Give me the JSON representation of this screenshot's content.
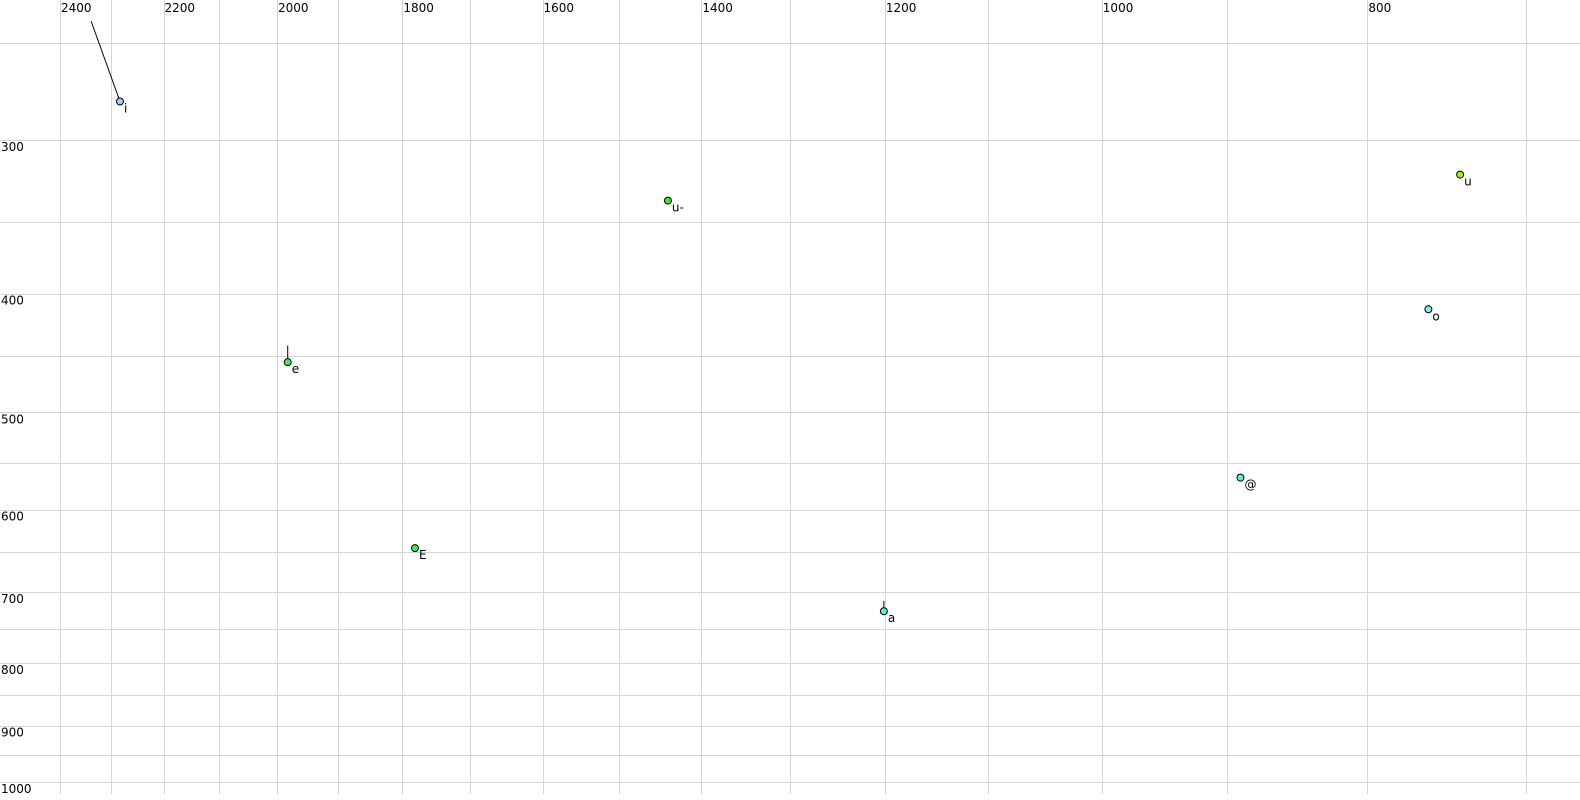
{
  "chart_data": {
    "type": "scatter",
    "title": "",
    "xlabel": "",
    "ylabel": "",
    "x_scale": "log",
    "y_scale": "log",
    "x_reversed": true,
    "y_reversed": true,
    "xlim": [
      2524,
      669
    ],
    "ylim": [
      230,
      1035
    ],
    "grid": true,
    "x_gridlines": [
      2400,
      2300,
      2200,
      2100,
      2000,
      1900,
      1800,
      1700,
      1600,
      1500,
      1400,
      1300,
      1200,
      1100,
      1000,
      900,
      800,
      700
    ],
    "x_ticks": [
      2400,
      2200,
      2000,
      1800,
      1600,
      1400,
      1200,
      1000,
      800
    ],
    "y_gridlines": [
      250,
      300,
      350,
      400,
      450,
      500,
      550,
      600,
      650,
      700,
      750,
      800,
      850,
      900,
      950,
      1000
    ],
    "y_ticks": [
      300,
      400,
      500,
      600,
      700,
      800,
      900,
      1000
    ],
    "points": [
      {
        "label": "i",
        "x": 2282,
        "y": 279,
        "color": "#a8ccff",
        "tail": {
          "x": 2338,
          "y": 240
        }
      },
      {
        "label": "e",
        "x": 1982,
        "y": 455,
        "color": "#44e866",
        "tail": {
          "x": 1982,
          "y": 441
        }
      },
      {
        "label": "E",
        "x": 1781,
        "y": 645,
        "color": "#44e855"
      },
      {
        "label": "u-",
        "x": 1440,
        "y": 336,
        "color": "#4ce03c"
      },
      {
        "label": "a",
        "x": 1201,
        "y": 726,
        "color": "#66ead8",
        "tail": {
          "x": 1201,
          "y": 712
        }
      },
      {
        "label": "@",
        "x": 890,
        "y": 565,
        "color": "#66eccc"
      },
      {
        "label": "o",
        "x": 760,
        "y": 412,
        "color": "#77f0f0"
      },
      {
        "label": "u",
        "x": 740,
        "y": 320,
        "color": "#99f022"
      }
    ]
  }
}
